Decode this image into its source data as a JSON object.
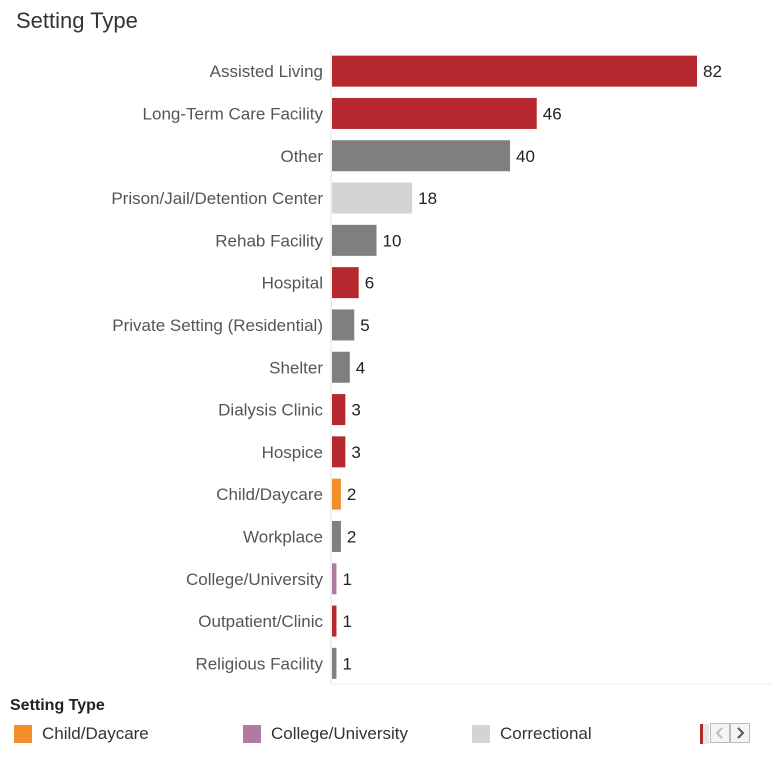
{
  "chart_data": {
    "type": "bar",
    "orientation": "horizontal",
    "title": "Setting Type",
    "categories": [
      "Assisted Living",
      "Long-Term Care Facility",
      "Other",
      "Prison/Jail/Detention Center",
      "Rehab Facility",
      "Hospital",
      "Private Setting (Residential)",
      "Shelter",
      "Dialysis Clinic",
      "Hospice",
      "Child/Daycare",
      "Workplace",
      "College/University",
      "Outpatient/Clinic",
      "Religious Facility"
    ],
    "values": [
      82,
      46,
      40,
      18,
      10,
      6,
      5,
      4,
      3,
      3,
      2,
      2,
      1,
      1,
      1
    ],
    "colors": [
      "#b5292e",
      "#b5292e",
      "#7f7f7f",
      "#d4d4d4",
      "#7f7f7f",
      "#b5292e",
      "#7f7f7f",
      "#7f7f7f",
      "#b5292e",
      "#b5292e",
      "#f28e2b",
      "#7f7f7f",
      "#b07aa1",
      "#b5292e",
      "#7f7f7f"
    ],
    "xlim": [
      0,
      82
    ],
    "grid": false
  },
  "legend": {
    "title": "Setting Type",
    "items": [
      {
        "label": "Child/Daycare",
        "color": "#f28e2b"
      },
      {
        "label": "College/University",
        "color": "#b07aa1"
      },
      {
        "label": "Correctional",
        "color": "#d4d4d4"
      }
    ],
    "scroll_left_icon": "chevron-left-icon",
    "scroll_right_icon": "chevron-right-icon"
  }
}
